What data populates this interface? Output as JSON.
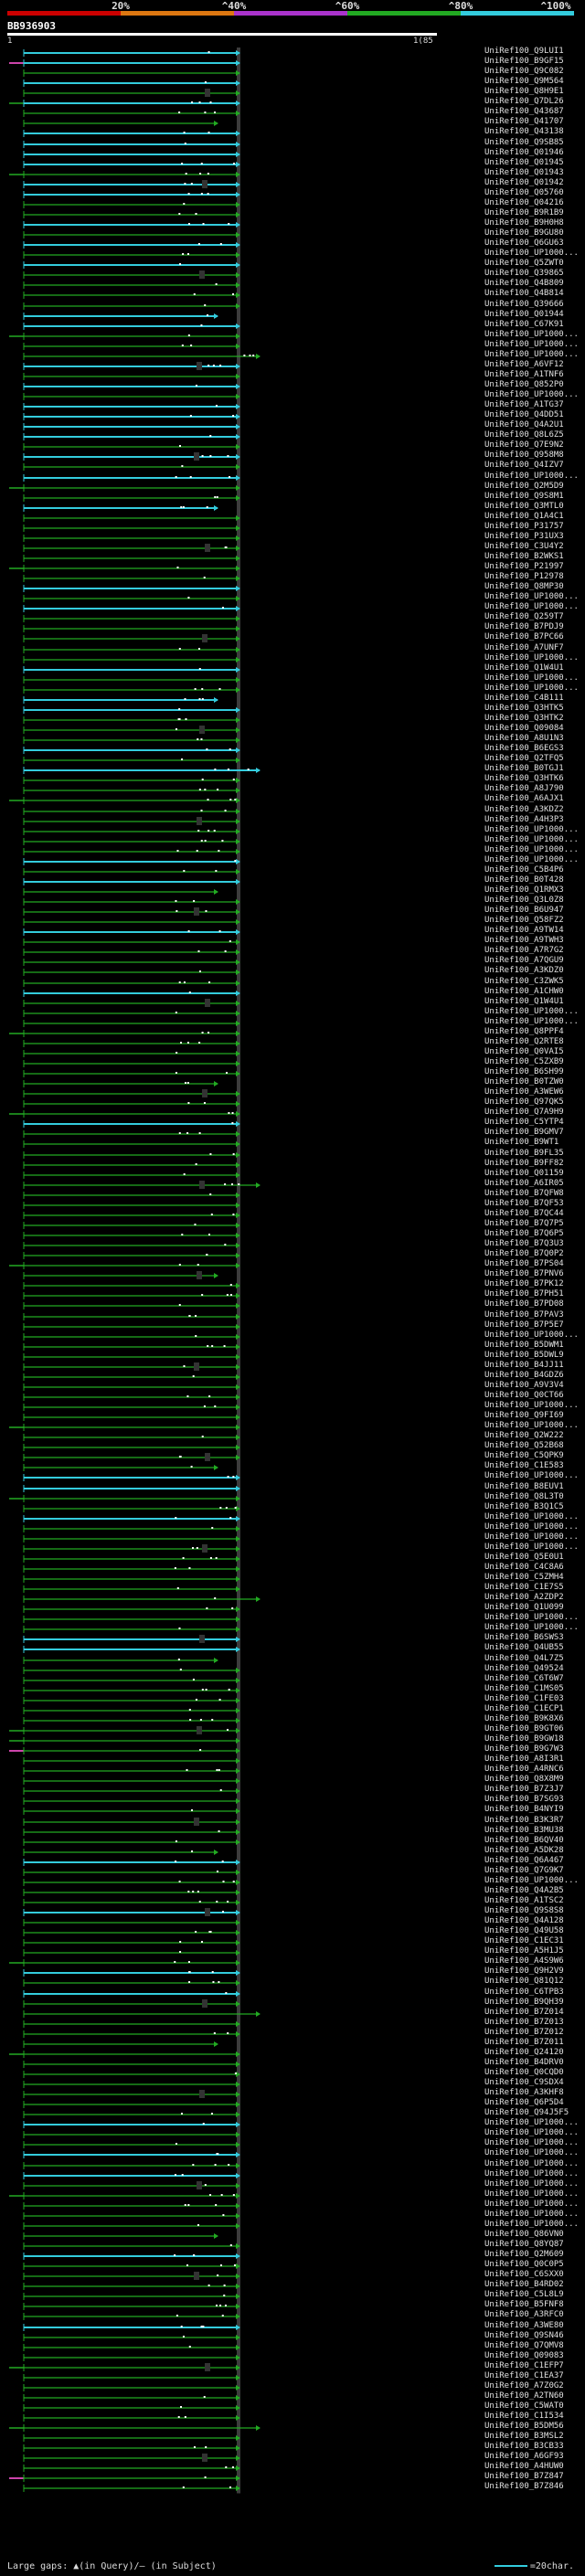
{
  "scale": {
    "marks": [
      "20%",
      "^40%",
      "^60%",
      "^80%",
      "^100%"
    ],
    "colors": [
      "#cc0000",
      "#dd7711",
      "#aa33cc",
      "#22aa22",
      "#33ccdd"
    ]
  },
  "query": {
    "title": "BB936903",
    "start": "1",
    "end": "1(85"
  },
  "colors": {
    "background": "#000000",
    "green": "#22aa22",
    "cyan": "#33ccdd",
    "magenta": "#cc44aa",
    "guide": "#777777"
  },
  "hits": [
    "UniRef100_Q9LUI1",
    "UniRef100_B9GF15",
    "UniRef100_Q9C082",
    "UniRef100_Q9M564",
    "UniRef100_Q8H9E1",
    "UniRef100_Q7DL26",
    "UniRef100_Q43687",
    "UniRef100_Q41707",
    "UniRef100_Q43138",
    "UniRef100_Q9SB85",
    "UniRef100_Q01946",
    "UniRef100_Q01945",
    "UniRef100_Q01943",
    "UniRef100_Q01942",
    "UniRef100_Q05760",
    "UniRef100_Q04216",
    "UniRef100_B9R1B9",
    "UniRef100_B9H0H8",
    "UniRef100_B9GU80",
    "UniRef100_Q6GU63",
    "UniRef100_UP1000...",
    "UniRef100_Q5ZWT0",
    "UniRef100_Q39865",
    "UniRef100_Q4B809",
    "UniRef100_Q4B814",
    "UniRef100_Q39666",
    "UniRef100_Q01944",
    "UniRef100_C67K91",
    "UniRef100_UP1000...",
    "UniRef100_UP1000...",
    "UniRef100_UP1000...",
    "UniRef100_A6VF12",
    "UniRef100_A1TNF6",
    "UniRef100_Q852P0",
    "UniRef100_UP1000...",
    "UniRef100_A1TG37",
    "UniRef100_Q4DD51",
    "UniRef100_Q4A2U1",
    "UniRef100_Q8L6Z5",
    "UniRef100_Q7E9N2",
    "UniRef100_Q958M8",
    "UniRef100_Q4IZV7",
    "UniRef100_UP1000...",
    "UniRef100_Q2M5D9",
    "UniRef100_Q9S8M1",
    "UniRef100_Q3MTL0",
    "UniRef100_Q1A4C1",
    "UniRef100_P31757",
    "UniRef100_P31UX3",
    "UniRef100_C3U4Y2",
    "UniRef100_B2WKS1",
    "UniRef100_P21997",
    "UniRef100_P12978",
    "UniRef100_Q8MP30",
    "UniRef100_UP1000...",
    "UniRef100_UP1000...",
    "UniRef100_Q259T7",
    "UniRef100_B7PDJ9",
    "UniRef100_B7PC66",
    "UniRef100_A7UNF7",
    "UniRef100_UP1000...",
    "UniRef100_Q1W4U1",
    "UniRef100_UP1000...",
    "UniRef100_UP1000...",
    "UniRef100_C4B111",
    "UniRef100_Q3HTK5",
    "UniRef100_Q3HTK2",
    "UniRef100_Q09084",
    "UniRef100_A8U1N3",
    "UniRef100_B6EGS3",
    "UniRef100_Q2TFQ5",
    "UniRef100_B0TGJ1",
    "UniRef100_Q3HTK6",
    "UniRef100_A8J790",
    "UniRef100_A6AJX1",
    "UniRef100_A3KDZ2",
    "UniRef100_A4H3P3",
    "UniRef100_UP1000...",
    "UniRef100_UP1000...",
    "UniRef100_UP1000...",
    "UniRef100_UP1000...",
    "UniRef100_C5B4P6",
    "UniRef100_B0T428",
    "UniRef100_Q1RMX3",
    "UniRef100_Q3L0Z8",
    "UniRef100_B6U947",
    "UniRef100_Q58FZ2",
    "UniRef100_A9TW14",
    "UniRef100_A9TWH3",
    "UniRef100_A7R7G2",
    "UniRef100_A7QGU9",
    "UniRef100_A3KDZ0",
    "UniRef100_C3ZWK5",
    "UniRef100_A1CHW0",
    "UniRef100_Q1W4U1",
    "UniRef100_UP1000...",
    "UniRef100_UP1000...",
    "UniRef100_Q8PPF4",
    "UniRef100_Q2RTE8",
    "UniRef100_Q0VAI5",
    "UniRef100_C5ZXB9",
    "UniRef100_B6SH99",
    "UniRef100_B0TZW0",
    "UniRef100_A3WEW6",
    "UniRef100_Q97QK5",
    "UniRef100_Q7A9H9",
    "UniRef100_C5YTP4",
    "UniRef100_B9GMV7",
    "UniRef100_B9WT1",
    "UniRef100_B9FL35",
    "UniRef100_B9FF82",
    "UniRef100_Q01159",
    "UniRef100_A6IR05",
    "UniRef100_B7QFW8",
    "UniRef100_B7QF53",
    "UniRef100_B7QC44",
    "UniRef100_B7Q7P5",
    "UniRef100_B7Q6P5",
    "UniRef100_B7Q3U3",
    "UniRef100_B7Q0P2",
    "UniRef100_B7PS04",
    "UniRef100_B7PNV6",
    "UniRef100_B7PK12",
    "UniRef100_B7PH51",
    "UniRef100_B7PD08",
    "UniRef100_B7PAV3",
    "UniRef100_B7P5E7",
    "UniRef100_UP1000...",
    "UniRef100_B5DWM1",
    "UniRef100_B5DWL9",
    "UniRef100_B4JJ11",
    "UniRef100_B4GDZ6",
    "UniRef100_A9V3V4",
    "UniRef100_Q0CT66",
    "UniRef100_UP1000...",
    "UniRef100_Q9FI69",
    "UniRef100_UP1000...",
    "UniRef100_Q2W222",
    "UniRef100_Q52B68",
    "UniRef100_C5QPK9",
    "UniRef100_C1E583",
    "UniRef100_UP1000...",
    "UniRef100_B8EUV1",
    "UniRef100_Q8L3T0",
    "UniRef100_B3Q1C5",
    "UniRef100_UP1000...",
    "UniRef100_UP1000...",
    "UniRef100_UP1000...",
    "UniRef100_UP1000...",
    "UniRef100_Q5E0U1",
    "UniRef100_C4C8A6",
    "UniRef100_C5ZMH4",
    "UniRef100_C1E7S5",
    "UniRef100_A2ZDP2",
    "UniRef100_Q1U099",
    "UniRef100_UP1000...",
    "UniRef100_UP1000...",
    "UniRef100_B6SWS3",
    "UniRef100_Q4UB55",
    "UniRef100_Q4L7Z5",
    "UniRef100_Q49524",
    "UniRef100_C6T6W7",
    "UniRef100_C1MS05",
    "UniRef100_C1FE03",
    "UniRef100_C1ECP1",
    "UniRef100_B9K8X6",
    "UniRef100_B9GT06",
    "UniRef100_B9GW18",
    "UniRef100_B9G7W3",
    "UniRef100_A8I3R1",
    "UniRef100_A4RNC6",
    "UniRef100_Q8X8M9",
    "UniRef100_B7Z3J7",
    "UniRef100_B7SG93",
    "UniRef100_B4NYI9",
    "UniRef100_B3K3R7",
    "UniRef100_B3MU38",
    "UniRef100_B6QV40",
    "UniRef100_A5DK28",
    "UniRef100_Q6A467",
    "UniRef100_Q7G9K7",
    "UniRef100_UP1000...",
    "UniRef100_Q4A2B5",
    "UniRef100_A1TSC2",
    "UniRef100_Q9S8S8",
    "UniRef100_Q4A128",
    "UniRef100_Q49U58",
    "UniRef100_C1EC31",
    "UniRef100_A5H1J5",
    "UniRef100_A4S9W6",
    "UniRef100_Q9H2V9",
    "UniRef100_Q81Q12",
    "UniRef100_C6TPB3",
    "UniRef100_B9QH39",
    "UniRef100_B7Z014",
    "UniRef100_B7Z013",
    "UniRef100_B7Z012",
    "UniRef100_B7Z011",
    "UniRef100_Q24120",
    "UniRef100_B4DRV0",
    "UniRef100_Q0CQD0",
    "UniRef100_C9SDX4",
    "UniRef100_A3KHF8",
    "UniRef100_Q6P5D4",
    "UniRef100_Q94J5F5",
    "UniRef100_UP1000...",
    "UniRef100_UP1000...",
    "UniRef100_UP1000...",
    "UniRef100_UP1000...",
    "UniRef100_UP1000...",
    "UniRef100_UP1000...",
    "UniRef100_UP1000...",
    "UniRef100_UP1000...",
    "UniRef100_UP1000...",
    "UniRef100_UP1000...",
    "UniRef100_UP1000...",
    "UniRef100_Q86VN0",
    "UniRef100_Q8YQ87",
    "UniRef100_Q2M609",
    "UniRef100_Q0C0P5",
    "UniRef100_C6SXX0",
    "UniRef100_B4RD02",
    "UniRef100_C5L8L9",
    "UniRef100_B5FNF8",
    "UniRef100_A3RFC0",
    "UniRef100_A3WE80",
    "UniRef100_Q9SN46",
    "UniRef100_Q7QMV8",
    "UniRef100_Q09083",
    "UniRef100_C1EFP7",
    "UniRef100_C1EA37",
    "UniRef100_A7Z0G2",
    "UniRef100_A2TN60",
    "UniRef100_C5WAT0",
    "UniRef100_C1I534",
    "UniRef100_B5DM56",
    "UniRef100_B3MSL2",
    "UniRef100_B3CB33",
    "UniRef100_A6GF93",
    "UniRef100_A4HUW0",
    "UniRef100_B7Z847",
    "UniRef100_B7Z846"
  ],
  "legend": {
    "left": "Large gaps: ▲(in Query)/– (in Subject)",
    "right": "=20char."
  }
}
